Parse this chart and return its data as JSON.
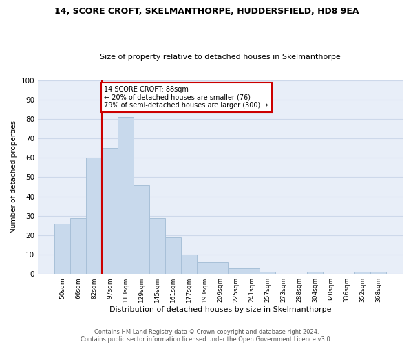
{
  "title1": "14, SCORE CROFT, SKELMANTHORPE, HUDDERSFIELD, HD8 9EA",
  "title2": "Size of property relative to detached houses in Skelmanthorpe",
  "xlabel": "Distribution of detached houses by size in Skelmanthorpe",
  "ylabel": "Number of detached properties",
  "bar_color": "#c8d9ec",
  "bar_edge_color": "#a8c0d8",
  "categories": [
    "50sqm",
    "66sqm",
    "82sqm",
    "97sqm",
    "113sqm",
    "129sqm",
    "145sqm",
    "161sqm",
    "177sqm",
    "193sqm",
    "209sqm",
    "225sqm",
    "241sqm",
    "257sqm",
    "273sqm",
    "288sqm",
    "304sqm",
    "320sqm",
    "336sqm",
    "352sqm",
    "368sqm"
  ],
  "values": [
    26,
    29,
    60,
    65,
    81,
    46,
    29,
    19,
    10,
    6,
    6,
    3,
    3,
    1,
    0,
    0,
    1,
    0,
    0,
    1,
    1
  ],
  "ylim": [
    0,
    100
  ],
  "yticks": [
    0,
    10,
    20,
    30,
    40,
    50,
    60,
    70,
    80,
    90,
    100
  ],
  "annotation_box_text": "14 SCORE CROFT: 88sqm\n← 20% of detached houses are smaller (76)\n79% of semi-detached houses are larger (300) →",
  "annotation_box_color": "#ffffff",
  "annotation_box_edge_color": "#cc0000",
  "annotation_line_color": "#cc0000",
  "grid_color": "#cdd8ea",
  "background_color": "#e8eef8",
  "footer": "Contains HM Land Registry data © Crown copyright and database right 2024.\nContains public sector information licensed under the Open Government Licence v3.0."
}
